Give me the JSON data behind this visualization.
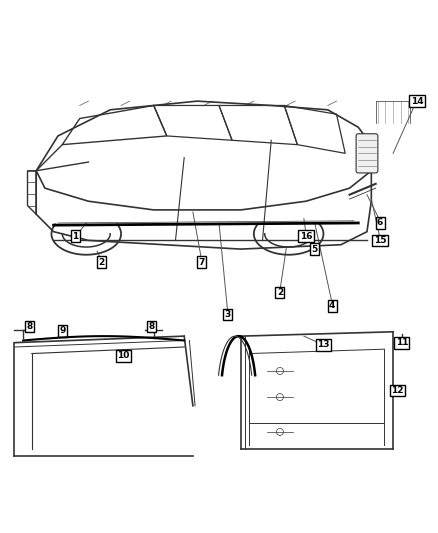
{
  "background_color": "#ffffff",
  "line_color": "#333333",
  "fig_width": 4.38,
  "fig_height": 5.33,
  "dpi": 100
}
